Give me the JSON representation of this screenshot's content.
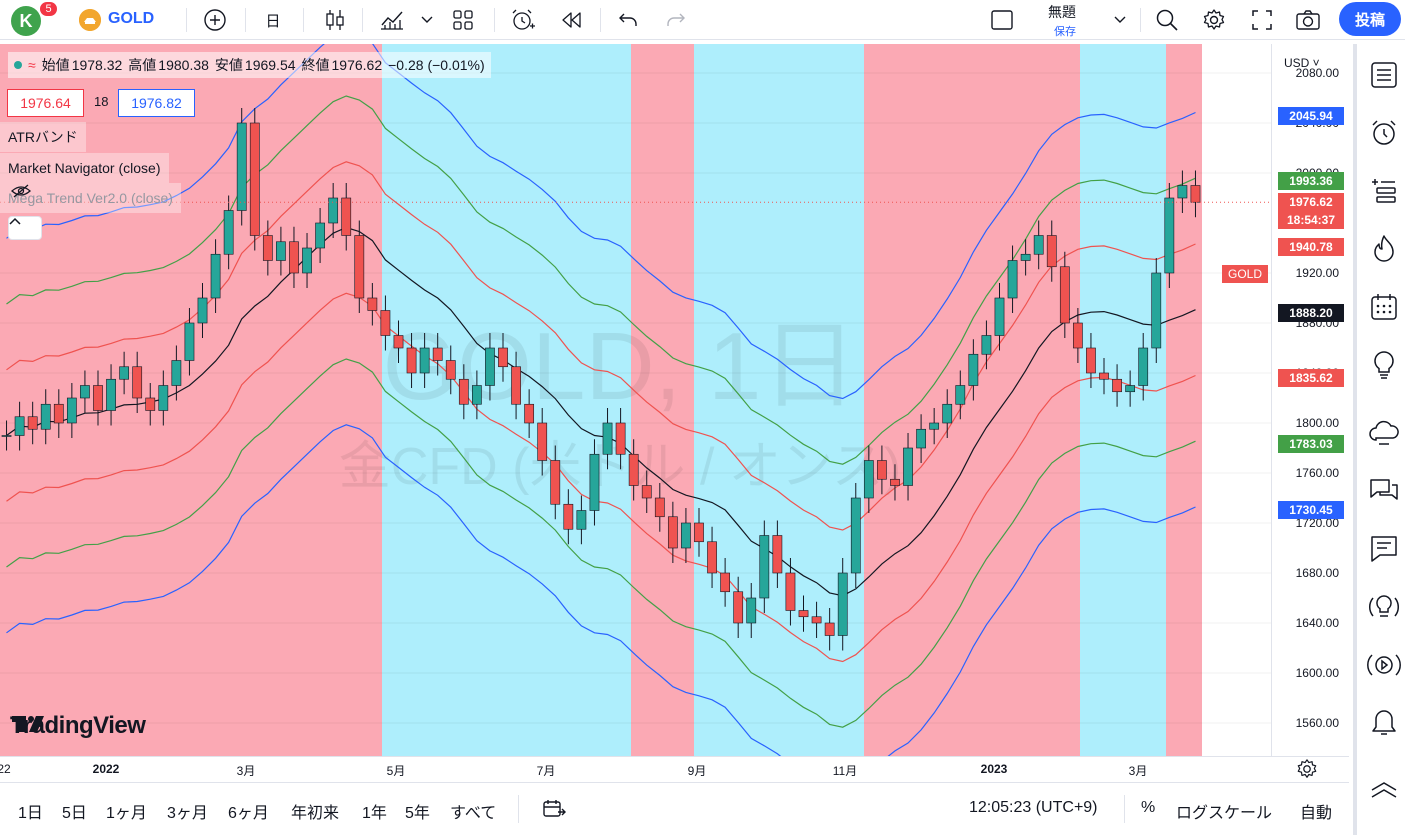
{
  "toolbar": {
    "avatar_letter": "K",
    "notifications": "5",
    "symbol": "GOLD",
    "interval": "日",
    "save_title": "無題",
    "save_sub": "保存",
    "publish": "投稿"
  },
  "legend": {
    "open_label": "始値",
    "open": "1978.32",
    "high_label": "高値",
    "high": "1980.38",
    "low_label": "安値",
    "low": "1969.54",
    "close_label": "終値",
    "close": "1976.62",
    "change": "−0.28 (−0.01%)",
    "bid": "1976.64",
    "spread": "18",
    "ask": "1976.82",
    "indicators": [
      "ATRバンド",
      "Market Navigator (close)",
      "Mega Trend Ver2.0 (close)"
    ]
  },
  "watermark": {
    "line1": "GOLD, 1日",
    "line2": "金CFD (米ドル / オンス)"
  },
  "brand": "TradingView",
  "price_axis": {
    "currency": "USD",
    "labels": [
      "2080.00",
      "2040.00",
      "2000.00",
      "1920.00",
      "1880.00",
      "1840.00",
      "1800.00",
      "1760.00",
      "1720.00",
      "1680.00",
      "1640.00",
      "1600.00",
      "1560.00"
    ],
    "tags": [
      {
        "value": "2045.94",
        "color": "#2962ff"
      },
      {
        "value": "1993.36",
        "color": "#43a047"
      },
      {
        "value": "1976.62",
        "color": "#ef5350"
      },
      {
        "value": "1940.78",
        "color": "#ef5350"
      },
      {
        "value": "1888.20",
        "color": "#131722"
      },
      {
        "value": "1835.62",
        "color": "#ef5350"
      },
      {
        "value": "1783.03",
        "color": "#43a047"
      },
      {
        "value": "1730.45",
        "color": "#2962ff"
      }
    ],
    "countdown": "18:54:37",
    "gold_tag": "GOLD"
  },
  "time_axis": [
    "22",
    "2022",
    "3月",
    "5月",
    "7月",
    "9月",
    "11月",
    "2023",
    "3月"
  ],
  "bottom": {
    "ranges": [
      "1日",
      "5日",
      "1ヶ月",
      "3ヶ月",
      "6ヶ月",
      "年初来",
      "1年",
      "5年",
      "すべて"
    ],
    "clock": "12:05:23 (UTC+9)",
    "percent": "%",
    "log": "ログスケール",
    "auto": "自動"
  },
  "chart_data": {
    "type": "candlestick",
    "ylim": [
      1540,
      2100
    ],
    "last_close": 1976.62,
    "bands": {
      "upper_outer": 2045.94,
      "upper_inner": 1993.36,
      "upper_mid": 1940.78,
      "middle": 1888.2,
      "lower_mid": 1835.62,
      "lower_inner": 1783.03,
      "lower_outer": 1730.45
    },
    "regimes": [
      {
        "from": "2021-12",
        "to": "2022-04-25",
        "state": "bear-red"
      },
      {
        "from": "2022-04-25",
        "to": "2022-08-12",
        "state": "bull-cyan"
      },
      {
        "from": "2022-08-12",
        "to": "2022-08-30",
        "state": "bear-red"
      },
      {
        "from": "2022-08-30",
        "to": "2022-11-04",
        "state": "bull-cyan"
      },
      {
        "from": "2022-11-04",
        "to": "2023-02-06",
        "state": "bear-red"
      },
      {
        "from": "2023-02-06",
        "to": "2023-03-08",
        "state": "bull-cyan"
      },
      {
        "from": "2023-03-08",
        "to": "2023-04-05",
        "state": "bear-red"
      }
    ],
    "closes": [
      1790,
      1805,
      1795,
      1815,
      1800,
      1820,
      1830,
      1810,
      1835,
      1845,
      1820,
      1810,
      1830,
      1850,
      1880,
      1900,
      1935,
      1970,
      2040,
      1950,
      1930,
      1945,
      1920,
      1940,
      1960,
      1980,
      1950,
      1900,
      1890,
      1870,
      1860,
      1840,
      1860,
      1850,
      1835,
      1815,
      1830,
      1860,
      1845,
      1815,
      1800,
      1770,
      1735,
      1715,
      1730,
      1775,
      1800,
      1775,
      1750,
      1740,
      1725,
      1700,
      1720,
      1705,
      1680,
      1665,
      1640,
      1660,
      1710,
      1680,
      1650,
      1645,
      1640,
      1630,
      1680,
      1740,
      1770,
      1755,
      1750,
      1780,
      1795,
      1800,
      1815,
      1830,
      1855,
      1870,
      1900,
      1930,
      1935,
      1950,
      1925,
      1880,
      1860,
      1840,
      1835,
      1825,
      1830,
      1860,
      1920,
      1980,
      1990,
      1976.62
    ]
  }
}
